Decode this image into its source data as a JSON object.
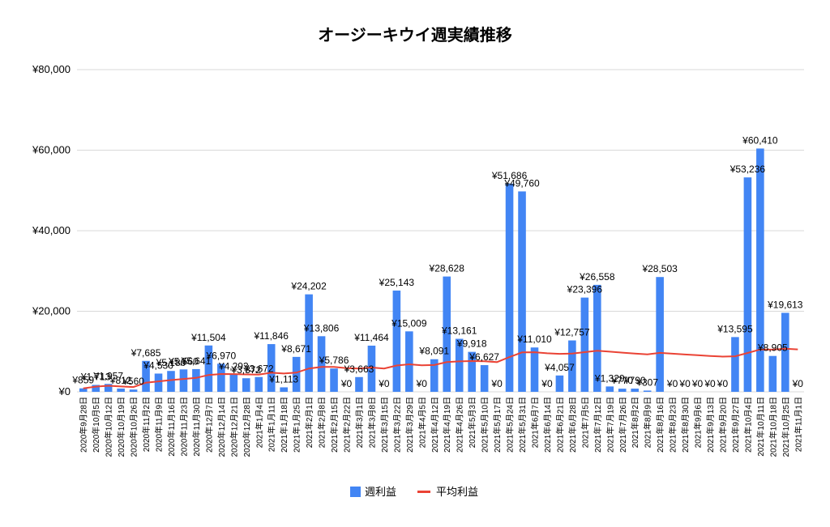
{
  "chart_data": {
    "type": "bar",
    "title": "オージーキウイ週実績推移",
    "ylim": [
      0,
      80000
    ],
    "yticks": [
      0,
      20000,
      40000,
      60000,
      80000
    ],
    "ytick_labels": [
      "¥0",
      "¥20,000",
      "¥40,000",
      "¥60,000",
      "¥80,000"
    ],
    "categories": [
      "2020年9月28日",
      "2020年10月5日",
      "2020年10月12日",
      "2020年10月19日",
      "2020年10月26日",
      "2020年11月2日",
      "2020年11月9日",
      "2020年11月16日",
      "2020年11月23日",
      "2020年11月30日",
      "2020年12月7日",
      "2020年12月14日",
      "2020年12月21日",
      "2020年12月28日",
      "2021年1月4日",
      "2021年1月11日",
      "2021年1月18日",
      "2021年1月25日",
      "2021年2月1日",
      "2021年2月8日",
      "2021年2月15日",
      "2021年2月22日",
      "2021年3月1日",
      "2021年3月8日",
      "2021年3月15日",
      "2021年3月22日",
      "2021年3月29日",
      "2021年4月5日",
      "2021年4月12日",
      "2021年4月19日",
      "2021年4月26日",
      "2021年5月3日",
      "2021年5月10日",
      "2021年5月17日",
      "2021年5月24日",
      "2021年5月31日",
      "2021年6月7日",
      "2021年6月14日",
      "2021年6月21日",
      "2021年6月28日",
      "2021年7月5日",
      "2021年7月12日",
      "2021年7月19日",
      "2021年7月26日",
      "2021年8月2日",
      "2021年8月9日",
      "2021年8月16日",
      "2021年8月23日",
      "2021年8月30日",
      "2021年9月6日",
      "2021年9月13日",
      "2021年9月20日",
      "2021年9月27日",
      "2021年10月4日",
      "2021年10月11日",
      "2021年10月18日",
      "2021年10月25日",
      "2021年11月1日"
    ],
    "series": [
      {
        "name": "週利益",
        "color": "#4285f4",
        "values": [
          859,
          1713,
          1957,
          812,
          560,
          7685,
          4530,
          5180,
          5560,
          5641,
          11504,
          6970,
          4293,
          3372,
          3672,
          11846,
          1113,
          8671,
          24202,
          13806,
          5786,
          0,
          3663,
          11464,
          0,
          25143,
          15009,
          0,
          8091,
          28628,
          13161,
          9918,
          6627,
          0,
          51686,
          49760,
          11010,
          0,
          4057,
          12757,
          23396,
          26558,
          1329,
          770,
          790,
          307,
          28503,
          0,
          0,
          0,
          0,
          0,
          13595,
          53236,
          60410,
          8905,
          19613,
          0
        ],
        "labels": [
          "¥859",
          "¥1,713",
          "¥1,957",
          "¥812",
          "¥560",
          "¥7,685",
          "¥4,530",
          "¥5,180",
          "¥5,560",
          "¥5,641",
          "¥11,504",
          "¥6,970",
          "¥4,293",
          "¥3,372",
          "¥3,672",
          "¥11,846",
          "¥1,113",
          "¥8,671",
          "¥24,202",
          "¥13,806",
          "¥5,786",
          "¥0",
          "¥3,663",
          "¥11,464",
          "¥0",
          "¥25,143",
          "¥15,009",
          "¥0",
          "¥8,091",
          "¥28,628",
          "¥13,161",
          "¥9,918",
          "¥6,627",
          "¥0",
          "¥51,686",
          "¥49,760",
          "¥11,010",
          "¥0",
          "¥4,057",
          "¥12,757",
          "¥23,396",
          "¥26,558",
          "¥1,329",
          "¥770",
          "¥790",
          "¥307",
          "¥28,503",
          "¥0",
          "¥0",
          "¥0",
          "¥0",
          "¥0",
          "¥13,595",
          "¥53,236",
          "¥60,410",
          "¥8,905",
          "¥19,613",
          "¥0"
        ]
      },
      {
        "name": "平均利益",
        "color": "#ea4335",
        "values": [
          859,
          1286,
          1510,
          1335,
          1180,
          2264,
          2588,
          2912,
          3206,
          3449,
          4181,
          4413,
          4404,
          4331,
          4287,
          4747,
          4533,
          4763,
          5786,
          6187,
          6168,
          5887,
          5790,
          6026,
          5785,
          6529,
          6843,
          6599,
          6650,
          7371,
          7558,
          7632,
          7604,
          7381,
          8646,
          9787,
          9820,
          9561,
          9420,
          9503,
          9844,
          10213,
          9973,
          9735,
          9510,
          9277,
          9669,
          9467,
          9274,
          9089,
          8910,
          8738,
          8831,
          9656,
          10513,
          10470,
          10714,
          10529
        ]
      }
    ],
    "legend": [
      "週利益",
      "平均利益"
    ],
    "legend_position": "bottom"
  }
}
